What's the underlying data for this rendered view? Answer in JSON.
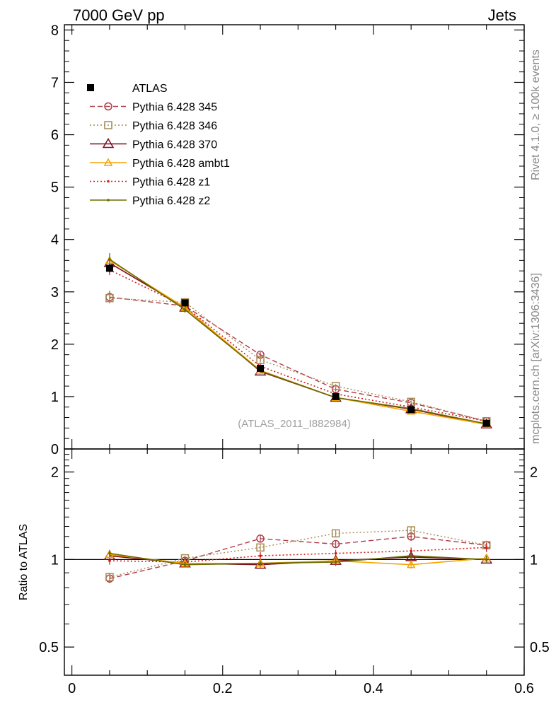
{
  "header": {
    "left": "7000 GeV pp",
    "right": "Jets"
  },
  "side_labels": {
    "rivet": "Rivet 4.1.0, ≥ 100k events",
    "mcplots": "mcplots.cern.ch [arXiv:1306:3436]"
  },
  "ratio_ylabel": "Ratio to ATLAS",
  "colors": {
    "ATLAS": "#000000",
    "p345": "#b03a48",
    "p346": "#a58a55",
    "p370": "#7b0d1e",
    "ambt1": "#f5a300",
    "z1": "#d41a1a",
    "z2": "#6b6b00"
  },
  "chart_data": [
    {
      "type": "line",
      "panel": "main",
      "title": "(ATLAS_2011_I882984)",
      "xlabel": "",
      "ylabel": "",
      "xlim": [
        -0.01,
        0.6
      ],
      "ylim": [
        0,
        8.1
      ],
      "x_ticks": [
        "0",
        "0.2",
        "0.4",
        "0.6"
      ],
      "y_ticks": [
        "0",
        "1",
        "2",
        "3",
        "4",
        "5",
        "6",
        "7",
        "8"
      ],
      "x": [
        0.05,
        0.15,
        0.25,
        0.35,
        0.45,
        0.55
      ],
      "series": [
        {
          "key": "ATLAS",
          "name": "ATLAS",
          "values": [
            3.45,
            2.79,
            1.54,
            1.0,
            0.75,
            0.49
          ],
          "errors": [
            0.08,
            0.05,
            0.04,
            0.03,
            0.03,
            0.02
          ]
        },
        {
          "key": "p345",
          "name": "Pythia 6.428 345",
          "values": [
            2.9,
            2.73,
            1.8,
            1.14,
            0.88,
            0.53
          ],
          "errors": [
            0.12,
            0.06,
            0.05,
            0.04,
            0.04,
            0.03
          ]
        },
        {
          "key": "p346",
          "name": "Pythia 6.428 346",
          "values": [
            2.88,
            2.8,
            1.7,
            1.2,
            0.9,
            0.53
          ],
          "errors": [
            0.1,
            0.05,
            0.05,
            0.04,
            0.03,
            0.03
          ]
        },
        {
          "key": "p370",
          "name": "Pythia 6.428 370",
          "values": [
            3.55,
            2.7,
            1.48,
            0.98,
            0.76,
            0.47
          ],
          "errors": [
            0.1,
            0.06,
            0.04,
            0.03,
            0.03,
            0.02
          ]
        },
        {
          "key": "ambt1",
          "name": "Pythia 6.428 ambt1",
          "values": [
            3.6,
            2.7,
            1.5,
            0.98,
            0.72,
            0.47
          ],
          "errors": [
            0.1,
            0.06,
            0.04,
            0.03,
            0.03,
            0.02
          ]
        },
        {
          "key": "z1",
          "name": "Pythia 6.428 z1",
          "values": [
            3.42,
            2.72,
            1.58,
            1.05,
            0.8,
            0.53
          ],
          "errors": [
            0.1,
            0.06,
            0.05,
            0.03,
            0.03,
            0.03
          ]
        },
        {
          "key": "z2",
          "name": "Pythia 6.428 z2",
          "values": [
            3.62,
            2.66,
            1.49,
            0.98,
            0.77,
            0.48
          ],
          "errors": [
            0.12,
            0.06,
            0.04,
            0.03,
            0.03,
            0.02
          ]
        }
      ],
      "legend_position": "top-left"
    },
    {
      "type": "line",
      "panel": "ratio",
      "ylabel": "Ratio to ATLAS",
      "yscale": "log",
      "xlim": [
        -0.01,
        0.6
      ],
      "ylim": [
        0.4,
        2.4
      ],
      "y_ticks": [
        "0.5",
        "1",
        "2"
      ],
      "x": [
        0.05,
        0.15,
        0.25,
        0.35,
        0.45,
        0.55
      ],
      "series": [
        {
          "key": "p345",
          "name": "Pythia 6.428 345",
          "values": [
            0.86,
            0.99,
            1.18,
            1.13,
            1.2,
            1.12
          ],
          "errors": [
            0.03,
            0.02,
            0.03,
            0.03,
            0.04,
            0.04
          ]
        },
        {
          "key": "p346",
          "name": "Pythia 6.428 346",
          "values": [
            0.87,
            1.01,
            1.1,
            1.23,
            1.26,
            1.12
          ],
          "errors": [
            0.03,
            0.02,
            0.03,
            0.03,
            0.04,
            0.04
          ]
        },
        {
          "key": "p370",
          "name": "Pythia 6.428 370",
          "values": [
            1.03,
            0.97,
            0.96,
            0.99,
            1.02,
            1.0
          ],
          "errors": [
            0.03,
            0.02,
            0.02,
            0.03,
            0.03,
            0.03
          ]
        },
        {
          "key": "ambt1",
          "name": "Pythia 6.428 ambt1",
          "values": [
            1.04,
            0.97,
            0.97,
            0.99,
            0.96,
            1.01
          ],
          "errors": [
            0.03,
            0.02,
            0.02,
            0.03,
            0.03,
            0.03
          ]
        },
        {
          "key": "z1",
          "name": "Pythia 6.428 z1",
          "values": [
            0.99,
            0.98,
            1.03,
            1.05,
            1.07,
            1.1
          ],
          "errors": [
            0.03,
            0.02,
            0.03,
            0.03,
            0.03,
            0.04
          ]
        },
        {
          "key": "z2",
          "name": "Pythia 6.428 z2",
          "values": [
            1.05,
            0.96,
            0.97,
            0.98,
            1.03,
            1.0
          ],
          "errors": [
            0.03,
            0.02,
            0.02,
            0.03,
            0.03,
            0.03
          ]
        }
      ]
    }
  ]
}
